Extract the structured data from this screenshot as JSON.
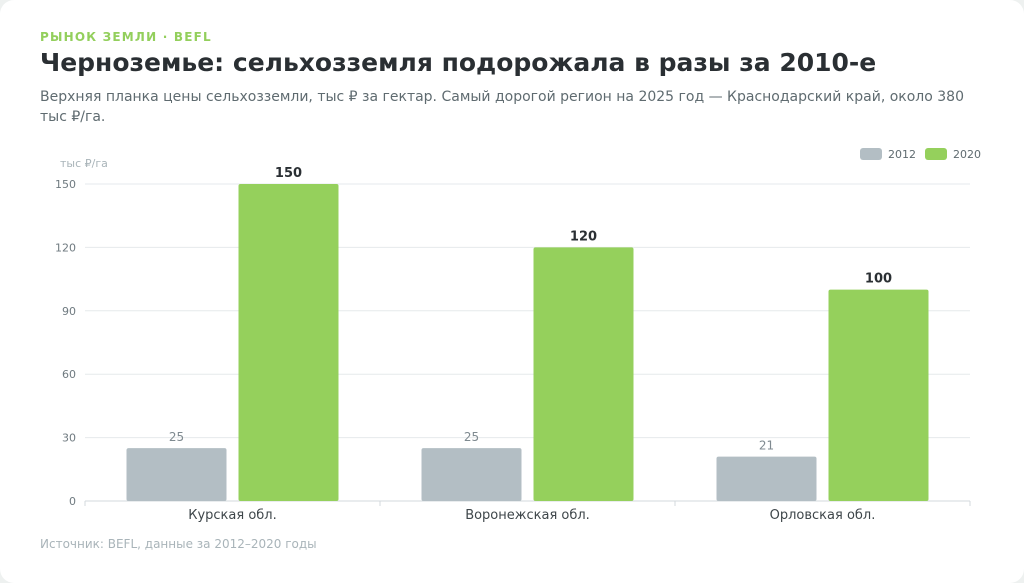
{
  "header": {
    "kicker": "РЫНОК ЗЕМЛИ · BEFL",
    "title": "Черноземье: сельхозземля подорожала в разы за 2010-е",
    "subtitle": "Верхняя планка цены сельхозземли, тыс ₽ за гектар. Самый дорогой регион на 2025 год — Краснодарский край, около 380 тыс ₽/га."
  },
  "footer": {
    "source": "Источник: BEFL, данные за 2012–2020 годы"
  },
  "chart_data": {
    "type": "bar",
    "ylabel": "тыс ₽/га",
    "ylim": [
      0,
      150
    ],
    "yticks": [
      0,
      30,
      60,
      90,
      120,
      150
    ],
    "grid": true,
    "legend_position": "top-right",
    "categories": [
      "Курская обл.",
      "Воронежская обл.",
      "Орловская обл."
    ],
    "series": [
      {
        "name": "2012",
        "color": "#b3bec4",
        "values": [
          25,
          25,
          21
        ]
      },
      {
        "name": "2020",
        "color": "#95d05c",
        "values": [
          150,
          120,
          100
        ]
      }
    ]
  }
}
